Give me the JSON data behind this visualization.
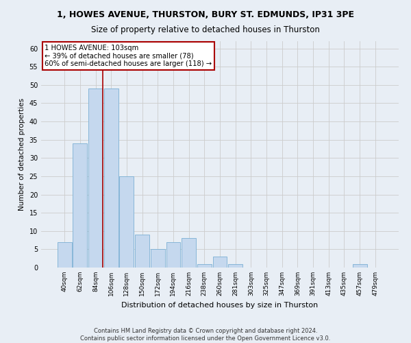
{
  "title1": "1, HOWES AVENUE, THURSTON, BURY ST. EDMUNDS, IP31 3PE",
  "title2": "Size of property relative to detached houses in Thurston",
  "xlabel": "Distribution of detached houses by size in Thurston",
  "ylabel": "Number of detached properties",
  "footnote1": "Contains HM Land Registry data © Crown copyright and database right 2024.",
  "footnote2": "Contains public sector information licensed under the Open Government Licence v3.0.",
  "bins": [
    "40sqm",
    "62sqm",
    "84sqm",
    "106sqm",
    "128sqm",
    "150sqm",
    "172sqm",
    "194sqm",
    "216sqm",
    "238sqm",
    "260sqm",
    "281sqm",
    "303sqm",
    "325sqm",
    "347sqm",
    "369sqm",
    "391sqm",
    "413sqm",
    "435sqm",
    "457sqm",
    "479sqm"
  ],
  "values": [
    7,
    34,
    49,
    49,
    25,
    9,
    5,
    7,
    8,
    1,
    3,
    1,
    0,
    0,
    0,
    0,
    0,
    0,
    0,
    1,
    0
  ],
  "bar_color": "#c5d8ee",
  "bar_edge_color": "#7aafd4",
  "annotation_text_line1": "1 HOWES AVENUE: 103sqm",
  "annotation_text_line2": "← 39% of detached houses are smaller (78)",
  "annotation_text_line3": "60% of semi-detached houses are larger (118) →",
  "annotation_box_color": "#ffffff",
  "annotation_box_edge": "#aa0000",
  "vline_color": "#aa0000",
  "vline_x": 2.47,
  "ylim": [
    0,
    62
  ],
  "yticks": [
    0,
    5,
    10,
    15,
    20,
    25,
    30,
    35,
    40,
    45,
    50,
    55,
    60
  ],
  "grid_color": "#cccccc",
  "figure_bg": "#e8eef5",
  "axes_bg": "#e8eef5",
  "title1_fontsize": 9,
  "title2_fontsize": 8.5
}
